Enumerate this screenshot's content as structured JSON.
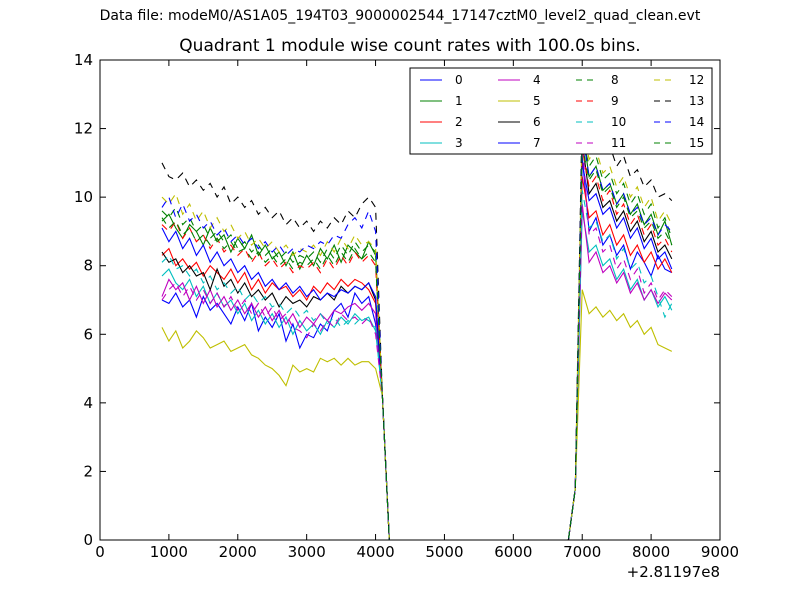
{
  "figure": {
    "suptitle": "Data file: modeM0/AS1A05_194T03_9000002544_17147cztM0_level2_quad_clean.evt",
    "x_offset_label": "+2.81197e8"
  },
  "chart_data": {
    "type": "line",
    "title": "Quadrant 1 module wise count rates with 100.0s bins.",
    "xlabel": "",
    "ylabel": "",
    "xlim": [
      0,
      9000
    ],
    "ylim": [
      0,
      14
    ],
    "x_ticks": [
      "0",
      "1000",
      "2000",
      "3000",
      "4000",
      "5000",
      "6000",
      "7000",
      "8000",
      "9000"
    ],
    "y_ticks": [
      "0",
      "2",
      "4",
      "6",
      "8",
      "10",
      "12",
      "14"
    ],
    "grid": false,
    "legend_position": "top-right",
    "x_segments": [
      {
        "start": 900,
        "end": 4000,
        "step": 100
      },
      {
        "start": 4100,
        "end": 4200,
        "step": 100
      },
      {
        "start": 6800,
        "end": 6900,
        "step": 100
      },
      {
        "start": 7000,
        "end": 8300,
        "step": 100
      }
    ],
    "series": [
      {
        "name": "0",
        "color": "#0000ff",
        "dash": "solid",
        "first_half": [
          7.0,
          6.9,
          7.2,
          6.8,
          7.0,
          6.5,
          7.1,
          6.7,
          6.9,
          6.6,
          6.3,
          6.8,
          6.4,
          6.9,
          6.1,
          6.5,
          6.2,
          6.6,
          5.8,
          6.3,
          5.6,
          6.0,
          5.9,
          6.3,
          6.1,
          6.7,
          6.9,
          6.5,
          7.2,
          6.9,
          7.1,
          6.3
        ],
        "second_half": [
          11.2,
          9.0,
          9.4,
          8.6,
          8.9,
          8.3,
          8.6,
          7.9,
          8.4,
          8.1,
          7.7,
          8.3,
          7.9,
          7.8
        ]
      },
      {
        "name": "1",
        "color": "#008000",
        "dash": "solid",
        "first_half": [
          9.3,
          9.5,
          9.1,
          8.8,
          9.2,
          9.0,
          8.6,
          9.1,
          8.7,
          8.9,
          8.4,
          8.8,
          8.5,
          8.9,
          8.3,
          8.6,
          8.2,
          8.4,
          8.0,
          8.4,
          7.9,
          8.3,
          8.0,
          8.5,
          8.2,
          8.6,
          8.1,
          8.6,
          8.4,
          8.2,
          8.7,
          8.3
        ],
        "second_half": [
          12.0,
          10.6,
          10.9,
          10.2,
          10.4,
          9.8,
          10.1,
          9.5,
          9.8,
          9.2,
          9.5,
          8.9,
          9.3,
          8.6
        ]
      },
      {
        "name": "2",
        "color": "#ff0000",
        "dash": "solid",
        "first_half": [
          8.3,
          8.5,
          8.0,
          8.2,
          7.9,
          8.1,
          7.7,
          8.0,
          7.8,
          7.6,
          7.9,
          7.5,
          7.8,
          7.3,
          7.6,
          7.2,
          7.5,
          7.3,
          7.4,
          7.1,
          7.3,
          7.0,
          7.4,
          7.2,
          7.5,
          7.3,
          7.6,
          7.4,
          7.6,
          7.5,
          7.3,
          6.9
        ],
        "second_half": [
          10.6,
          9.4,
          9.6,
          8.9,
          9.2,
          8.6,
          8.9,
          8.3,
          8.6,
          8.1,
          8.4,
          7.9,
          8.2,
          7.8
        ]
      },
      {
        "name": "3",
        "color": "#00bfbf",
        "dash": "solid",
        "first_half": [
          7.7,
          7.9,
          7.5,
          7.3,
          7.6,
          7.1,
          7.4,
          6.9,
          7.2,
          6.8,
          7.0,
          6.6,
          6.9,
          6.4,
          6.7,
          6.3,
          6.6,
          6.2,
          6.5,
          6.0,
          6.4,
          6.1,
          6.3,
          6.0,
          6.4,
          6.2,
          6.5,
          6.3,
          6.6,
          6.4,
          6.5,
          6.1
        ],
        "second_half": [
          9.6,
          8.4,
          8.6,
          8.0,
          8.2,
          7.6,
          7.9,
          7.3,
          7.6,
          7.0,
          7.3,
          6.8,
          7.1,
          6.7
        ]
      },
      {
        "name": "4",
        "color": "#bf00bf",
        "dash": "solid",
        "first_half": [
          7.1,
          7.6,
          7.3,
          7.5,
          7.0,
          7.4,
          6.9,
          7.3,
          6.8,
          7.1,
          6.7,
          7.0,
          6.6,
          6.9,
          6.5,
          6.8,
          6.4,
          6.7,
          6.3,
          6.6,
          6.2,
          6.5,
          6.3,
          6.6,
          6.4,
          6.7,
          6.6,
          6.8,
          6.9,
          6.7,
          6.9,
          6.6
        ],
        "second_half": [
          9.8,
          8.1,
          8.4,
          7.8,
          8.0,
          7.5,
          7.8,
          7.2,
          7.5,
          7.0,
          7.3,
          6.9,
          7.2,
          7.0
        ]
      },
      {
        "name": "5",
        "color": "#bfbf00",
        "dash": "solid",
        "first_half": [
          6.2,
          5.8,
          6.1,
          5.6,
          5.8,
          6.1,
          5.9,
          5.6,
          5.7,
          5.8,
          5.5,
          5.6,
          5.7,
          5.4,
          5.3,
          5.1,
          5.0,
          4.8,
          4.5,
          5.1,
          4.9,
          5.0,
          4.9,
          5.3,
          5.2,
          5.3,
          5.1,
          5.3,
          5.1,
          5.2,
          5.2,
          5.0
        ],
        "second_half": [
          7.3,
          6.6,
          6.8,
          6.5,
          6.7,
          6.4,
          6.6,
          6.2,
          6.4,
          6.0,
          6.2,
          5.7,
          5.6,
          5.5
        ]
      },
      {
        "name": "6",
        "color": "#000000",
        "dash": "solid",
        "first_half": [
          8.4,
          8.1,
          8.2,
          7.8,
          8.0,
          7.7,
          7.8,
          7.3,
          7.9,
          7.4,
          7.6,
          7.2,
          7.5,
          7.1,
          7.3,
          7.0,
          7.2,
          6.8,
          7.1,
          6.9,
          7.0,
          6.8,
          7.1,
          7.0,
          7.2,
          7.0,
          7.4,
          7.2,
          7.4,
          7.3,
          7.5,
          7.0
        ],
        "second_half": [
          11.6,
          10.1,
          10.4,
          9.7,
          9.9,
          9.3,
          9.6,
          9.0,
          9.3,
          8.7,
          9.0,
          8.4,
          8.6,
          8.2
        ]
      },
      {
        "name": "7",
        "color": "#0000ff",
        "dash": "solid",
        "first_half": [
          9.1,
          8.7,
          9.0,
          8.5,
          8.8,
          8.3,
          8.6,
          8.1,
          8.4,
          8.0,
          8.2,
          7.8,
          8.0,
          7.6,
          7.8,
          7.4,
          7.6,
          7.3,
          7.5,
          7.2,
          7.4,
          7.1,
          7.3,
          7.0,
          7.2,
          7.1,
          7.3,
          7.2,
          7.4,
          7.3,
          7.5,
          7.1
        ],
        "second_half": [
          11.0,
          9.9,
          10.1,
          9.5,
          9.7,
          9.1,
          9.4,
          8.8,
          9.1,
          8.5,
          8.8,
          8.2,
          8.4,
          7.9
        ]
      },
      {
        "name": "8",
        "color": "#008000",
        "dash": "dashed",
        "first_half": [
          9.6,
          9.4,
          9.7,
          9.2,
          9.4,
          9.0,
          9.2,
          8.8,
          9.0,
          8.7,
          8.9,
          8.5,
          8.7,
          8.4,
          8.6,
          8.3,
          8.5,
          8.2,
          8.4,
          8.1,
          8.3,
          8.2,
          8.4,
          8.1,
          8.5,
          8.2,
          8.6,
          8.3,
          8.7,
          8.4,
          8.6,
          8.4
        ],
        "second_half": [
          11.8,
          10.9,
          11.2,
          10.5,
          10.7,
          10.1,
          10.4,
          9.8,
          10.1,
          9.5,
          9.8,
          9.1,
          9.4,
          8.8
        ]
      },
      {
        "name": "9",
        "color": "#ff0000",
        "dash": "dashed",
        "first_half": [
          9.2,
          9.0,
          9.3,
          8.8,
          9.1,
          8.7,
          8.9,
          8.5,
          8.8,
          8.4,
          8.6,
          8.3,
          8.5,
          8.1,
          8.4,
          8.0,
          8.2,
          7.9,
          8.1,
          7.8,
          8.0,
          7.9,
          8.1,
          7.8,
          8.2,
          7.9,
          8.3,
          8.0,
          8.4,
          8.1,
          8.3,
          8.0
        ],
        "second_half": [
          11.4,
          10.3,
          10.6,
          9.9,
          10.2,
          9.5,
          9.8,
          9.2,
          9.5,
          8.9,
          9.2,
          8.6,
          8.8,
          8.4
        ]
      },
      {
        "name": "10",
        "color": "#00bfbf",
        "dash": "dashed",
        "first_half": [
          8.1,
          8.3,
          7.9,
          8.0,
          7.7,
          7.9,
          7.5,
          7.7,
          7.3,
          7.5,
          7.2,
          7.4,
          7.0,
          7.2,
          6.9,
          7.1,
          6.8,
          6.9,
          6.6,
          6.8,
          6.5,
          6.7,
          6.4,
          6.6,
          6.3,
          6.5,
          6.2,
          6.4,
          6.3,
          6.5,
          6.4,
          6.2
        ],
        "second_half": [
          10.2,
          9.1,
          9.3,
          8.7,
          8.9,
          8.2,
          8.5,
          7.9,
          8.1,
          7.5,
          7.7,
          7.1,
          6.5,
          6.9
        ]
      },
      {
        "name": "11",
        "color": "#bf00bf",
        "dash": "dashed",
        "first_half": [
          7.0,
          7.3,
          7.5,
          7.1,
          7.4,
          7.0,
          7.3,
          6.9,
          7.2,
          6.8,
          7.1,
          6.7,
          7.0,
          6.6,
          6.9,
          6.5,
          6.8,
          6.4,
          6.6,
          6.2,
          6.1,
          5.9,
          6.3,
          6.1,
          6.4,
          6.2,
          6.6,
          6.4,
          6.5,
          6.3,
          6.5,
          6.0
        ],
        "second_half": [
          11.6,
          8.9,
          9.1,
          8.4,
          8.6,
          7.9,
          8.2,
          7.6,
          7.9,
          7.2,
          7.5,
          7.0,
          7.3,
          7.1
        ]
      },
      {
        "name": "12",
        "color": "#bfbf00",
        "dash": "dashed",
        "first_half": [
          10.0,
          9.8,
          10.1,
          9.5,
          9.8,
          9.3,
          9.6,
          9.1,
          9.4,
          9.0,
          9.2,
          8.8,
          9.0,
          8.6,
          8.8,
          8.5,
          8.7,
          8.4,
          8.6,
          8.3,
          8.5,
          8.4,
          8.6,
          8.3,
          8.7,
          8.4,
          8.8,
          8.5,
          8.9,
          8.6,
          8.7,
          8.5
        ],
        "second_half": [
          12.2,
          11.1,
          11.4,
          10.7,
          10.9,
          10.3,
          10.6,
          10.0,
          10.3,
          9.7,
          10.0,
          9.3,
          9.6,
          9.2
        ]
      },
      {
        "name": "13",
        "color": "#000000",
        "dash": "dashed",
        "first_half": [
          11.0,
          10.6,
          10.5,
          10.7,
          10.3,
          10.5,
          10.2,
          10.4,
          10.0,
          10.3,
          9.8,
          10.0,
          9.7,
          9.9,
          9.5,
          9.7,
          9.4,
          9.6,
          9.2,
          9.4,
          9.1,
          9.3,
          9.0,
          9.3,
          9.1,
          9.4,
          9.2,
          9.6,
          9.4,
          9.8,
          10.0,
          9.7
        ],
        "second_half": [
          12.6,
          11.7,
          12.0,
          11.3,
          11.5,
          10.9,
          11.2,
          10.6,
          10.8,
          10.3,
          10.5,
          10.0,
          10.1,
          9.9
        ]
      },
      {
        "name": "14",
        "color": "#0000ff",
        "dash": "dashed",
        "first_half": [
          9.7,
          10.0,
          9.4,
          9.8,
          9.3,
          9.5,
          9.1,
          9.3,
          8.9,
          9.1,
          8.7,
          8.9,
          8.6,
          8.8,
          8.5,
          8.7,
          8.4,
          8.6,
          8.3,
          8.5,
          8.4,
          8.6,
          8.5,
          8.7,
          8.6,
          8.9,
          8.8,
          9.2,
          9.4,
          9.1,
          9.6,
          9.0
        ],
        "second_half": [
          11.9,
          10.6,
          10.9,
          10.2,
          10.4,
          9.8,
          10.1,
          9.5,
          9.7,
          9.2,
          9.4,
          8.9,
          9.2,
          9.0
        ]
      },
      {
        "name": "15",
        "color": "#008000",
        "dash": "dashed",
        "first_half": [
          9.4,
          9.1,
          9.3,
          8.9,
          9.1,
          8.7,
          8.9,
          8.6,
          8.8,
          8.5,
          8.7,
          8.4,
          8.5,
          8.2,
          8.4,
          8.1,
          8.3,
          8.0,
          8.2,
          7.9,
          8.1,
          8.0,
          8.2,
          7.9,
          8.3,
          8.0,
          8.4,
          8.1,
          8.5,
          8.2,
          8.4,
          8.1
        ],
        "second_half": [
          11.5,
          10.5,
          10.8,
          10.1,
          10.3,
          9.7,
          10.0,
          9.4,
          9.6,
          9.1,
          9.3,
          8.8,
          9.0,
          8.6
        ]
      }
    ],
    "transition": {
      "drop_value_4100": 4.2,
      "zero_value": 0,
      "rise_value_6900": 1.5
    }
  }
}
